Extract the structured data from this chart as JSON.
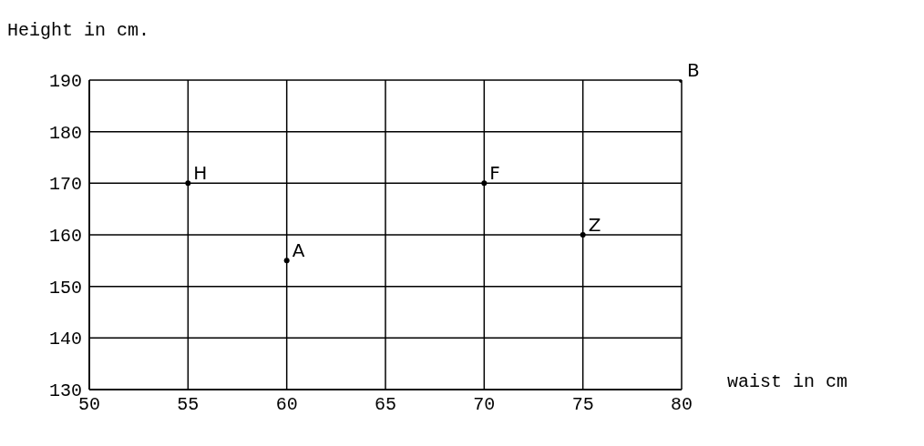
{
  "chart_data": {
    "type": "scatter",
    "ylabel": "Height in cm.",
    "xlabel": "waist in cm",
    "x": [
      55,
      60,
      70,
      75,
      80
    ],
    "values": [
      170,
      155,
      170,
      160,
      190
    ],
    "color": "#000000",
    "marker": "circle",
    "grid": true,
    "xlim": [
      50,
      80
    ],
    "xticks": [
      50,
      55,
      60,
      65,
      70,
      75,
      80
    ],
    "ylim": [
      130,
      190
    ],
    "yticks": [
      130,
      140,
      150,
      160,
      170,
      180,
      190
    ],
    "annotations": [
      {
        "text": "H",
        "x": 55,
        "y": 170
      },
      {
        "text": "A",
        "x": 60,
        "y": 155
      },
      {
        "text": "F",
        "x": 70,
        "y": 170
      },
      {
        "text": "Z",
        "x": 75,
        "y": 160
      },
      {
        "text": "B",
        "x": 80,
        "y": 190
      }
    ]
  }
}
